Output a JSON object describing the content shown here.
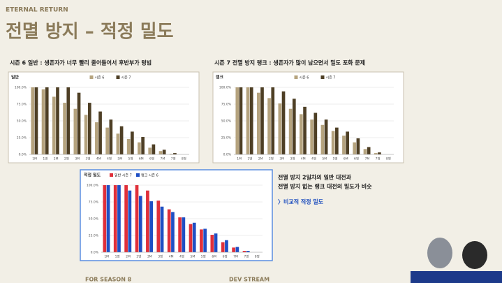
{
  "header": {
    "brand": "ETERNAL RETURN",
    "title": "전멸 방지 – 적정 밀도"
  },
  "notes": [
    "전멸 방지 2일차의 일반 대전과",
    "전멸 방지 없는 랭크 대전의 밀도가 비슷",
    "〉비교적 적정 밀도"
  ],
  "footer": [
    "FOR SEASON 8",
    "DEV STREAM"
  ],
  "chart_data": [
    {
      "type": "bar",
      "title": "시즌 6 일반 : 생존자가 너무 빨리 줄어들어서 후반부가 텅빔",
      "ylabel": "일반",
      "categories": [
        "1M",
        "1명",
        "2M",
        "2명",
        "3M",
        "3명",
        "4M",
        "4명",
        "5M",
        "5명",
        "6M",
        "6명",
        "7M",
        "7명",
        "8명"
      ],
      "series": [
        {
          "name": "시즌 6",
          "color": "#b5a37e",
          "values": [
            100,
            97,
            86,
            77,
            68,
            59,
            48,
            40,
            31,
            23,
            18,
            10,
            5,
            1,
            0
          ]
        },
        {
          "name": "시즌 7",
          "color": "#4e3f25",
          "values": [
            100,
            100,
            100,
            100,
            92,
            77,
            64,
            52,
            42,
            34,
            26,
            15,
            7,
            2,
            0
          ]
        }
      ],
      "ylim": [
        0,
        100
      ],
      "yticks": [
        {
          "value": 0,
          "label": "0.0%"
        },
        {
          "value": 25,
          "label": "25.0%"
        },
        {
          "value": 50,
          "label": "50.0%"
        },
        {
          "value": 75,
          "label": "75.0%"
        },
        {
          "value": 100,
          "label": "100.0%"
        }
      ],
      "grid": true,
      "legend": "top"
    },
    {
      "type": "bar",
      "title": "시즌 7 전멸 방지 랭크 : 생존자가 많이 남으면서 밀도 포화 문제",
      "ylabel": "랭크",
      "categories": [
        "1M",
        "1명",
        "2M",
        "2명",
        "3M",
        "3명",
        "4M",
        "4명",
        "5M",
        "5명",
        "6M",
        "6명",
        "7M",
        "7명",
        "8명"
      ],
      "series": [
        {
          "name": "시즌 6",
          "color": "#b5a37e",
          "values": [
            100,
            100,
            92,
            84,
            76,
            68,
            60,
            52,
            44,
            35,
            28,
            18,
            8,
            2,
            0
          ]
        },
        {
          "name": "시즌 7",
          "color": "#4e3f25",
          "values": [
            100,
            100,
            100,
            100,
            94,
            83,
            71,
            62,
            52,
            40,
            34,
            24,
            11,
            3,
            0
          ]
        }
      ],
      "ylim": [
        0,
        100
      ],
      "yticks": [
        {
          "value": 0,
          "label": "0.0%"
        },
        {
          "value": 25,
          "label": "25.0%"
        },
        {
          "value": 50,
          "label": "50.0%"
        },
        {
          "value": 75,
          "label": "75.0%"
        },
        {
          "value": 100,
          "label": "100.0%"
        }
      ],
      "grid": true,
      "legend": "top"
    },
    {
      "type": "bar",
      "title": "적정 밀도",
      "categories": [
        "1M",
        "1명",
        "2M",
        "2명",
        "3M",
        "3명",
        "4M",
        "4명",
        "5M",
        "5명",
        "6M",
        "6명",
        "7M",
        "7명",
        "8명"
      ],
      "series": [
        {
          "name": "일반 시즌 7",
          "color": "#e0303a",
          "values": [
            100,
            100,
            100,
            100,
            92,
            77,
            64,
            52,
            42,
            34,
            26,
            15,
            7,
            2,
            0
          ]
        },
        {
          "name": "랭크 시즌 6",
          "color": "#1f4fc4",
          "values": [
            100,
            100,
            92,
            84,
            76,
            68,
            60,
            52,
            44,
            35,
            28,
            18,
            8,
            2,
            0
          ]
        }
      ],
      "ylim": [
        0,
        100
      ],
      "yticks": [
        {
          "value": 0,
          "label": "0.0%"
        },
        {
          "value": 25,
          "label": "25.0%"
        },
        {
          "value": 50,
          "label": "50.0%"
        },
        {
          "value": 75,
          "label": "75.0%"
        },
        {
          "value": 100,
          "label": "100.0%"
        }
      ],
      "grid": true,
      "legend": "top"
    }
  ]
}
